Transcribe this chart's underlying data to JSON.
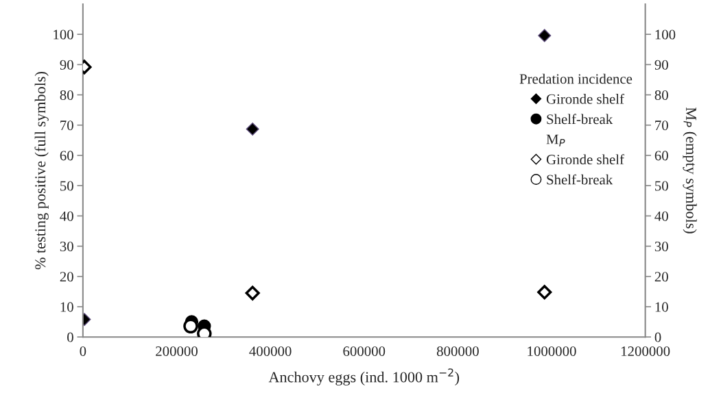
{
  "chart_data": {
    "type": "scatter",
    "xlabel": "Anchovy eggs (ind. 1000 m$^{−2}$)",
    "ylabel": "% testing positive (full symbols)",
    "y2label": "M$_{P}$ (empty symbols)",
    "legend_title": "Predation incidence",
    "annotations": [
      "M$_{P}$"
    ],
    "series": [
      {
        "name": "Gironde shelf",
        "color": "#000000",
        "marker": "diamond",
        "x": [
          3000,
          362000,
          985000
        ],
        "values": [
          5.8,
          68.7,
          99.6
        ]
      },
      {
        "name": "Shelf-break",
        "color": "#000000",
        "marker": "circle",
        "x": [
          232000,
          259000
        ],
        "values": [
          5.0,
          3.6
        ]
      },
      {
        "name": "Gironde shelf",
        "color": "#000000",
        "marker": "diamond",
        "axis": "y2",
        "x": [
          3000,
          362000,
          985000
        ],
        "values": [
          89.2,
          14.5,
          14.8
        ]
      },
      {
        "name": "Shelf-break",
        "color": "#000000",
        "marker": "circle",
        "axis": "y2",
        "x": [
          230000,
          259000
        ],
        "values": [
          3.6,
          1.1
        ]
      }
    ],
    "xlim": [
      0,
      1200000
    ],
    "xticks": [
      0,
      200000,
      400000,
      600000,
      800000,
      1000000,
      1200000
    ],
    "ylim": [
      0,
      110
    ],
    "yticks": [
      0,
      10,
      20,
      30,
      40,
      50,
      60,
      70,
      80,
      90,
      100
    ],
    "y2lim": [
      0,
      110
    ],
    "y2ticks": [
      0,
      10,
      20,
      30,
      40,
      50,
      60,
      70,
      80,
      90,
      100
    ],
    "grid": false,
    "legend": "right"
  }
}
